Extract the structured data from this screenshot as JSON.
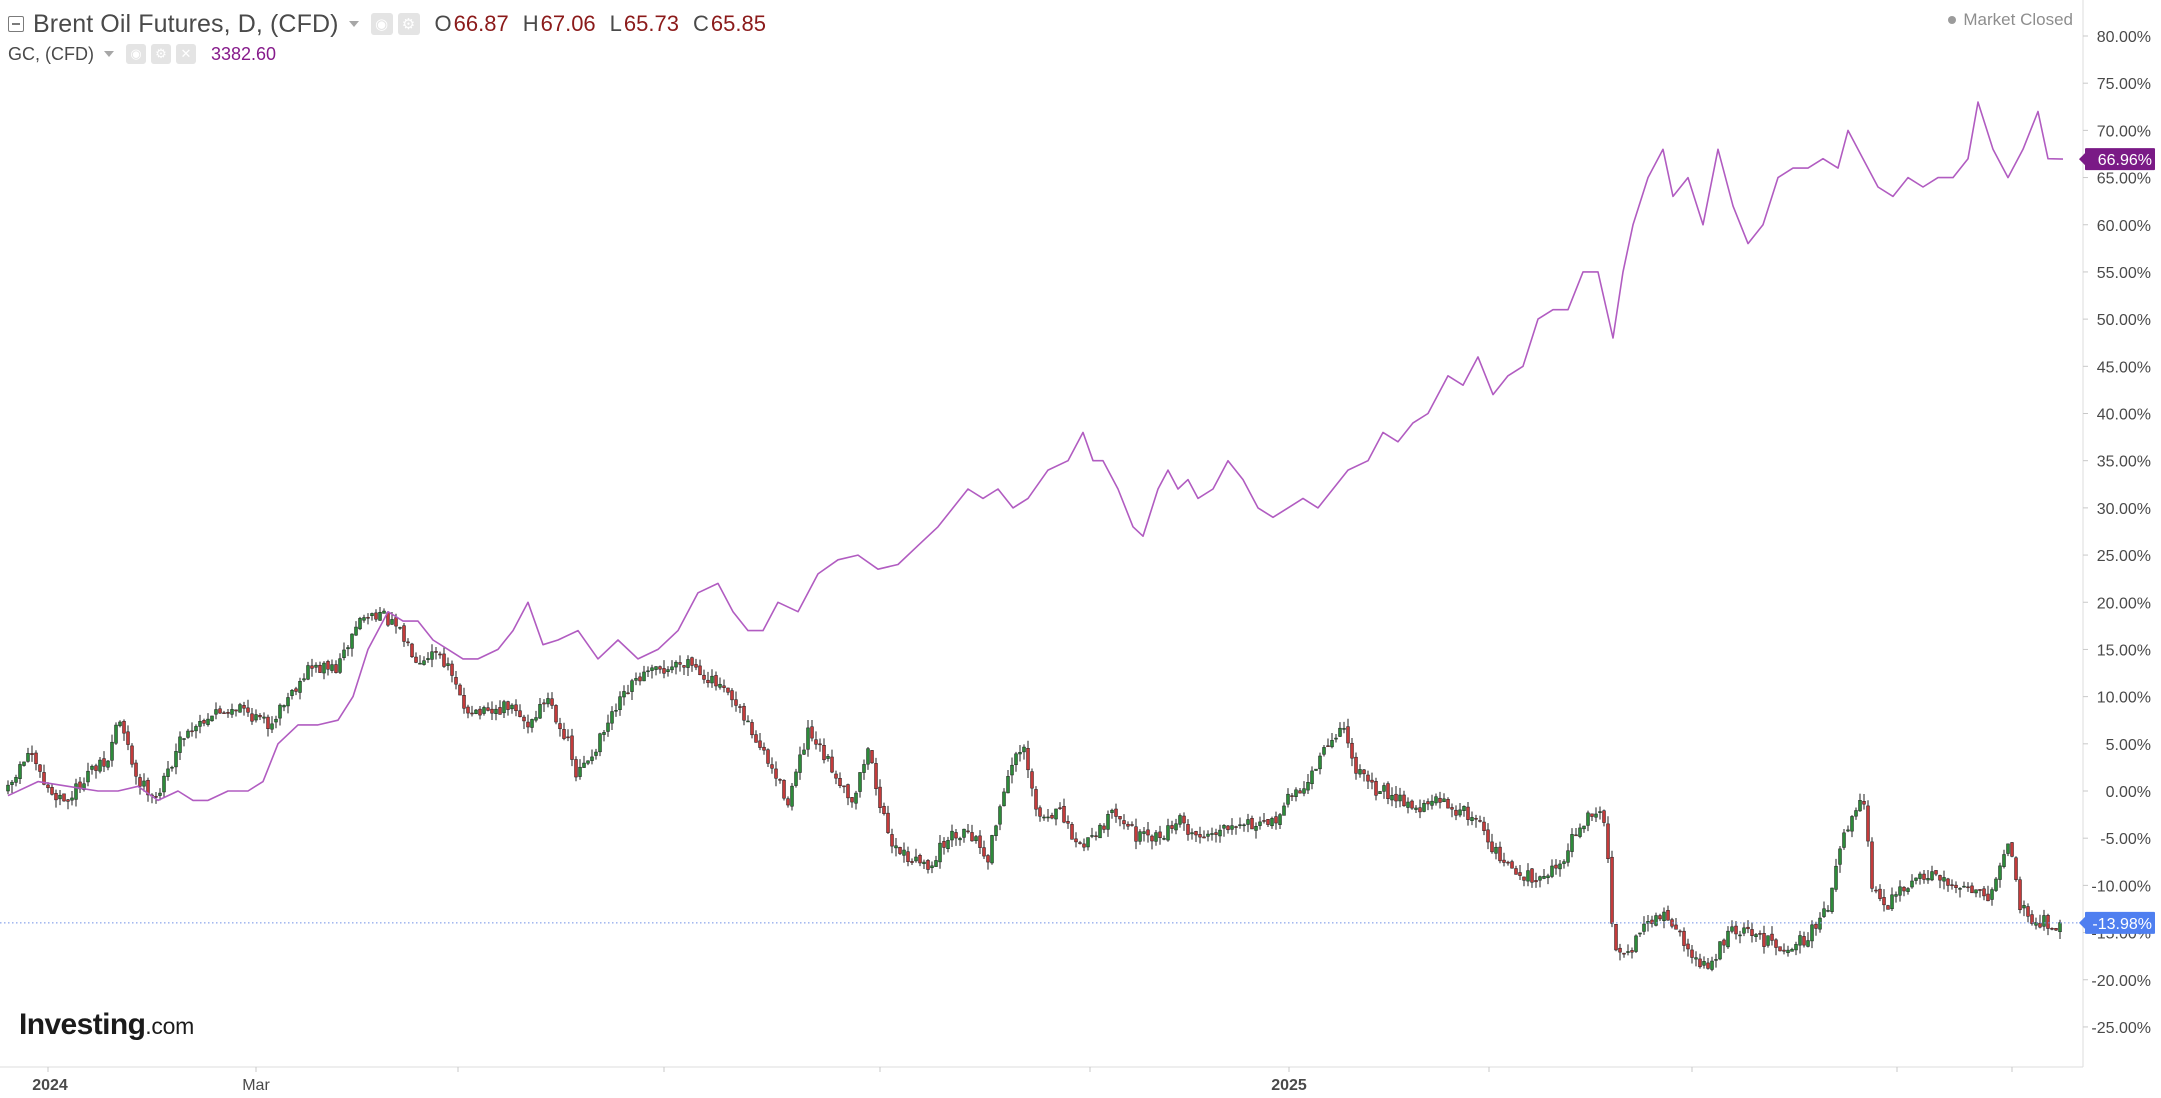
{
  "colors": {
    "up": "#2d8b3a",
    "down": "#c43b3b",
    "wick": "#1f1f1f",
    "compare_line": "#b15cc1",
    "compare_badge": "#7a1a86",
    "last_price_line": "#6f8fe5",
    "last_price_badge": "#4f7ff0",
    "axis": "#dcdcdc"
  },
  "legend": {
    "main_title": "Brent Oil Futures, D, (CFD)",
    "o_label": "O",
    "o_value": "66.87",
    "h_label": "H",
    "h_value": "67.06",
    "l_label": "L",
    "l_value": "65.73",
    "c_label": "C",
    "c_value": "65.85",
    "secondary_title": "GC, (CFD)",
    "secondary_value": "3382.60",
    "icons": [
      "collapse-icon",
      "dropdown-caret-icon",
      "eye-icon",
      "gear-icon",
      "close-icon"
    ]
  },
  "status": {
    "market": "Market Closed"
  },
  "brand": {
    "main": "Investing",
    "suffix": ".com"
  },
  "chart_data": {
    "type": "line",
    "title": "Brent Oil Futures, D, (CFD)",
    "ylabel": "",
    "xlabel": "",
    "y_unit": "%",
    "ylim": [
      -27.5,
      82.5
    ],
    "y_ticks": [
      "80.00%",
      "75.00%",
      "70.00%",
      "65.00%",
      "60.00%",
      "55.00%",
      "50.00%",
      "45.00%",
      "40.00%",
      "35.00%",
      "30.00%",
      "25.00%",
      "20.00%",
      "15.00%",
      "10.00%",
      "5.00%",
      "0.00%",
      "-5.00%",
      "-10.00%",
      "-15.00%",
      "-20.00%",
      "-25.00%"
    ],
    "y_tick_values": [
      80,
      75,
      70,
      65,
      60,
      55,
      50,
      45,
      40,
      35,
      30,
      25,
      20,
      15,
      10,
      5,
      0,
      -5,
      -10,
      -15,
      -20,
      -25
    ],
    "x_tick_labels": [
      "2024",
      "Mar",
      "2025"
    ],
    "grid": false,
    "series": [
      {
        "name": "Brent Oil Futures, D, (CFD)",
        "style": "candlestick",
        "anchors": [
          [
            0,
            0.0
          ],
          [
            20,
            4.0
          ],
          [
            40,
            0.0
          ],
          [
            60,
            -1.0
          ],
          [
            80,
            2.0
          ],
          [
            100,
            3.0
          ],
          [
            110,
            8.0
          ],
          [
            130,
            1.0
          ],
          [
            150,
            -0.5
          ],
          [
            175,
            6.0
          ],
          [
            200,
            8.0
          ],
          [
            230,
            9.0
          ],
          [
            260,
            7.0
          ],
          [
            300,
            13.0
          ],
          [
            330,
            13.0
          ],
          [
            350,
            18.0
          ],
          [
            370,
            19.0
          ],
          [
            390,
            17.0
          ],
          [
            410,
            14.0
          ],
          [
            430,
            15.0
          ],
          [
            440,
            13.0
          ],
          [
            455,
            9.0
          ],
          [
            480,
            8.0
          ],
          [
            500,
            9.0
          ],
          [
            520,
            7.0
          ],
          [
            540,
            10.0
          ],
          [
            560,
            5.0
          ],
          [
            568,
            1.5
          ],
          [
            590,
            5.0
          ],
          [
            610,
            9.0
          ],
          [
            630,
            12.0
          ],
          [
            660,
            13.0
          ],
          [
            680,
            14.0
          ],
          [
            700,
            12.0
          ],
          [
            720,
            10.0
          ],
          [
            740,
            7.0
          ],
          [
            760,
            3.0
          ],
          [
            780,
            -1.0
          ],
          [
            800,
            6.0
          ],
          [
            820,
            3.0
          ],
          [
            845,
            -1.0
          ],
          [
            860,
            4.5
          ],
          [
            880,
            -5.0
          ],
          [
            900,
            -7.0
          ],
          [
            920,
            -8.0
          ],
          [
            940,
            -5.0
          ],
          [
            960,
            -4.0
          ],
          [
            980,
            -7.0
          ],
          [
            1000,
            2.0
          ],
          [
            1015,
            4.5
          ],
          [
            1030,
            -3.0
          ],
          [
            1050,
            -2.0
          ],
          [
            1070,
            -6.0
          ],
          [
            1090,
            -4.0
          ],
          [
            1110,
            -2.0
          ],
          [
            1130,
            -5.0
          ],
          [
            1150,
            -5.0
          ],
          [
            1170,
            -3.0
          ],
          [
            1190,
            -5.0
          ],
          [
            1210,
            -4.0
          ],
          [
            1230,
            -3.0
          ],
          [
            1260,
            -4.0
          ],
          [
            1280,
            -1.0
          ],
          [
            1300,
            1.0
          ],
          [
            1320,
            5.0
          ],
          [
            1335,
            7.0
          ],
          [
            1345,
            3.0
          ],
          [
            1360,
            0.5
          ],
          [
            1390,
            -0.5
          ],
          [
            1410,
            -2.0
          ],
          [
            1430,
            -1.0
          ],
          [
            1450,
            -2.0
          ],
          [
            1470,
            -3.0
          ],
          [
            1490,
            -7.0
          ],
          [
            1510,
            -9.0
          ],
          [
            1530,
            -9.0
          ],
          [
            1550,
            -8.0
          ],
          [
            1570,
            -4.0
          ],
          [
            1590,
            -2.0
          ],
          [
            1598,
            -4.0
          ],
          [
            1605,
            -16.0
          ],
          [
            1620,
            -17.0
          ],
          [
            1640,
            -14.0
          ],
          [
            1660,
            -13.0
          ],
          [
            1680,
            -17.0
          ],
          [
            1700,
            -19.0
          ],
          [
            1720,
            -15.0
          ],
          [
            1740,
            -15.0
          ],
          [
            1760,
            -16.0
          ],
          [
            1780,
            -16.5
          ],
          [
            1800,
            -15.5
          ],
          [
            1820,
            -12.0
          ],
          [
            1835,
            -5.0
          ],
          [
            1845,
            -3.0
          ],
          [
            1855,
            -1.0
          ],
          [
            1865,
            -11.0
          ],
          [
            1880,
            -12.0
          ],
          [
            1900,
            -10.0
          ],
          [
            1920,
            -9.0
          ],
          [
            1940,
            -10.0
          ],
          [
            1960,
            -10.0
          ],
          [
            1980,
            -11.0
          ],
          [
            1990,
            -9.0
          ],
          [
            2000,
            -5.0
          ],
          [
            2012,
            -12.0
          ],
          [
            2025,
            -13.5
          ],
          [
            2040,
            -14.0
          ],
          [
            2055,
            -14.2
          ]
        ],
        "last_value_label": "-13.98%"
      },
      {
        "name": "GC, (CFD)",
        "style": "line",
        "points": [
          [
            0,
            -0.5
          ],
          [
            30,
            1.0
          ],
          [
            60,
            0.5
          ],
          [
            90,
            0.0
          ],
          [
            110,
            0.0
          ],
          [
            130,
            0.5
          ],
          [
            150,
            -1.0
          ],
          [
            170,
            0.0
          ],
          [
            185,
            -1.0
          ],
          [
            200,
            -1.0
          ],
          [
            220,
            0.0
          ],
          [
            240,
            0.0
          ],
          [
            255,
            1.0
          ],
          [
            270,
            5.0
          ],
          [
            290,
            7.0
          ],
          [
            310,
            7.0
          ],
          [
            330,
            7.5
          ],
          [
            345,
            10.0
          ],
          [
            360,
            15.0
          ],
          [
            370,
            17.0
          ],
          [
            380,
            19.0
          ],
          [
            395,
            18.0
          ],
          [
            410,
            18.0
          ],
          [
            425,
            16.0
          ],
          [
            440,
            15.0
          ],
          [
            455,
            14.0
          ],
          [
            470,
            14.0
          ],
          [
            490,
            15.0
          ],
          [
            505,
            17.0
          ],
          [
            520,
            20.0
          ],
          [
            535,
            15.5
          ],
          [
            550,
            16.0
          ],
          [
            570,
            17.0
          ],
          [
            590,
            14.0
          ],
          [
            610,
            16.0
          ],
          [
            630,
            14.0
          ],
          [
            650,
            15.0
          ],
          [
            670,
            17.0
          ],
          [
            690,
            21.0
          ],
          [
            710,
            22.0
          ],
          [
            725,
            19.0
          ],
          [
            740,
            17.0
          ],
          [
            755,
            17.0
          ],
          [
            770,
            20.0
          ],
          [
            790,
            19.0
          ],
          [
            810,
            23.0
          ],
          [
            830,
            24.5
          ],
          [
            850,
            25.0
          ],
          [
            870,
            23.5
          ],
          [
            890,
            24.0
          ],
          [
            910,
            26.0
          ],
          [
            930,
            28.0
          ],
          [
            945,
            30.0
          ],
          [
            960,
            32.0
          ],
          [
            975,
            31.0
          ],
          [
            990,
            32.0
          ],
          [
            1005,
            30.0
          ],
          [
            1020,
            31.0
          ],
          [
            1040,
            34.0
          ],
          [
            1060,
            35.0
          ],
          [
            1075,
            38.0
          ],
          [
            1085,
            35.0
          ],
          [
            1095,
            35.0
          ],
          [
            1110,
            32.0
          ],
          [
            1125,
            28.0
          ],
          [
            1135,
            27.0
          ],
          [
            1150,
            32.0
          ],
          [
            1160,
            34.0
          ],
          [
            1170,
            32.0
          ],
          [
            1180,
            33.0
          ],
          [
            1190,
            31.0
          ],
          [
            1205,
            32.0
          ],
          [
            1220,
            35.0
          ],
          [
            1235,
            33.0
          ],
          [
            1250,
            30.0
          ],
          [
            1265,
            29.0
          ],
          [
            1280,
            30.0
          ],
          [
            1295,
            31.0
          ],
          [
            1310,
            30.0
          ],
          [
            1325,
            32.0
          ],
          [
            1340,
            34.0
          ],
          [
            1360,
            35.0
          ],
          [
            1375,
            38.0
          ],
          [
            1390,
            37.0
          ],
          [
            1405,
            39.0
          ],
          [
            1420,
            40.0
          ],
          [
            1440,
            44.0
          ],
          [
            1455,
            43.0
          ],
          [
            1470,
            46.0
          ],
          [
            1485,
            42.0
          ],
          [
            1500,
            44.0
          ],
          [
            1515,
            45.0
          ],
          [
            1530,
            50.0
          ],
          [
            1545,
            51.0
          ],
          [
            1560,
            51.0
          ],
          [
            1575,
            55.0
          ],
          [
            1590,
            55.0
          ],
          [
            1605,
            48.0
          ],
          [
            1615,
            55.0
          ],
          [
            1625,
            60.0
          ],
          [
            1640,
            65.0
          ],
          [
            1655,
            68.0
          ],
          [
            1665,
            63.0
          ],
          [
            1680,
            65.0
          ],
          [
            1695,
            60.0
          ],
          [
            1710,
            68.0
          ],
          [
            1725,
            62.0
          ],
          [
            1740,
            58.0
          ],
          [
            1755,
            60.0
          ],
          [
            1770,
            65.0
          ],
          [
            1785,
            66.0
          ],
          [
            1800,
            66.0
          ],
          [
            1815,
            67.0
          ],
          [
            1830,
            66.0
          ],
          [
            1840,
            70.0
          ],
          [
            1855,
            67.0
          ],
          [
            1870,
            64.0
          ],
          [
            1885,
            63.0
          ],
          [
            1900,
            65.0
          ],
          [
            1915,
            64.0
          ],
          [
            1930,
            65.0
          ],
          [
            1945,
            65.0
          ],
          [
            1960,
            67.0
          ],
          [
            1970,
            73.0
          ],
          [
            1985,
            68.0
          ],
          [
            2000,
            65.0
          ],
          [
            2015,
            68.0
          ],
          [
            2030,
            72.0
          ],
          [
            2040,
            67.0
          ],
          [
            2055,
            66.96
          ]
        ],
        "last_value_label": "66.96%"
      }
    ]
  }
}
